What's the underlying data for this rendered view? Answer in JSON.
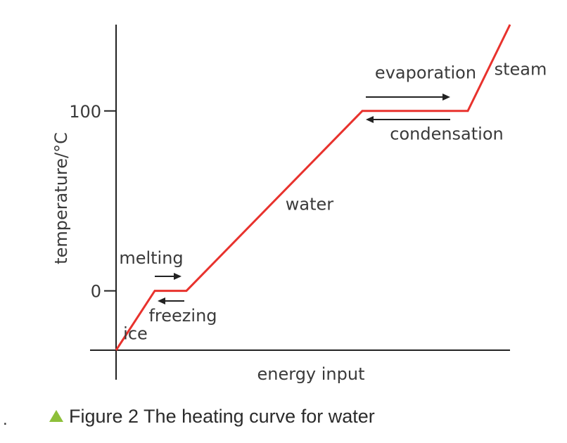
{
  "chart_data": {
    "type": "line",
    "xlabel": "energy input",
    "ylabel": "temperature/°C",
    "yticks": [
      0,
      100
    ],
    "series": [
      {
        "x": [
          0,
          1.1,
          2.0,
          7.0,
          10.0,
          11.2
        ],
        "y": [
          -33,
          0,
          0,
          100,
          100,
          148
        ],
        "color": "#e8322d"
      }
    ],
    "annotations": [
      {
        "text": "ice",
        "x": 0.55,
        "y": -27
      },
      {
        "text": "melting",
        "x": 1.0,
        "y": 15
      },
      {
        "text": "freezing",
        "x": 1.9,
        "y": -17
      },
      {
        "text": "water",
        "x": 5.5,
        "y": 45
      },
      {
        "text": "evaporation",
        "x": 8.8,
        "y": 118
      },
      {
        "text": "condensation",
        "x": 9.4,
        "y": 84
      },
      {
        "text": "steam",
        "x": 11.5,
        "y": 120
      }
    ],
    "arrows": [
      {
        "name": "melting-arrow",
        "direction": "right"
      },
      {
        "name": "freezing-arrow",
        "direction": "left"
      },
      {
        "name": "evaporation-arrow",
        "direction": "right"
      },
      {
        "name": "condensation-arrow",
        "direction": "left"
      }
    ],
    "xlim": [
      0,
      11.2
    ],
    "ylim": [
      -33,
      148
    ],
    "grid": false,
    "legend": "none"
  },
  "caption": {
    "marker": ".",
    "text": "Figure 2 The heating curve for water"
  }
}
